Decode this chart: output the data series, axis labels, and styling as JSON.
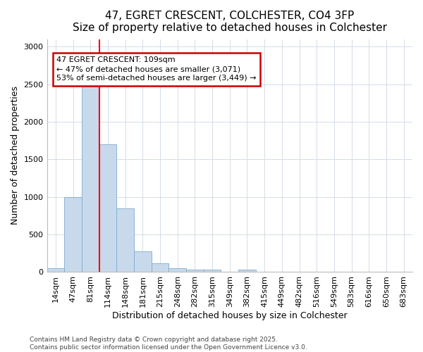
{
  "title1": "47, EGRET CRESCENT, COLCHESTER, CO4 3FP",
  "title2": "Size of property relative to detached houses in Colchester",
  "xlabel": "Distribution of detached houses by size in Colchester",
  "ylabel": "Number of detached properties",
  "categories": [
    "14sqm",
    "47sqm",
    "81sqm",
    "114sqm",
    "148sqm",
    "181sqm",
    "215sqm",
    "248sqm",
    "282sqm",
    "315sqm",
    "349sqm",
    "382sqm",
    "415sqm",
    "449sqm",
    "482sqm",
    "516sqm",
    "549sqm",
    "583sqm",
    "616sqm",
    "650sqm",
    "683sqm"
  ],
  "values": [
    50,
    1000,
    2500,
    1700,
    850,
    280,
    120,
    55,
    30,
    30,
    0,
    30,
    0,
    0,
    0,
    0,
    0,
    0,
    0,
    0,
    0
  ],
  "bar_color": "#c9d9ec",
  "bar_edge_color": "#7aabce",
  "redline_x": 2.5,
  "annotation_line1": "47 EGRET CRESCENT: 109sqm",
  "annotation_line2": "← 47% of detached houses are smaller (3,071)",
  "annotation_line3": "53% of semi-detached houses are larger (3,449) →",
  "annotation_box_facecolor": "#ffffff",
  "annotation_box_edgecolor": "#cc0000",
  "ylim": [
    0,
    3100
  ],
  "yticks": [
    0,
    500,
    1000,
    1500,
    2000,
    2500,
    3000
  ],
  "grid_color": "#d4dce8",
  "footnote1": "Contains HM Land Registry data © Crown copyright and database right 2025.",
  "footnote2": "Contains public sector information licensed under the Open Government Licence v3.0.",
  "bg_color": "#ffffff",
  "title_fontsize": 11,
  "axis_label_fontsize": 9,
  "tick_fontsize": 8
}
